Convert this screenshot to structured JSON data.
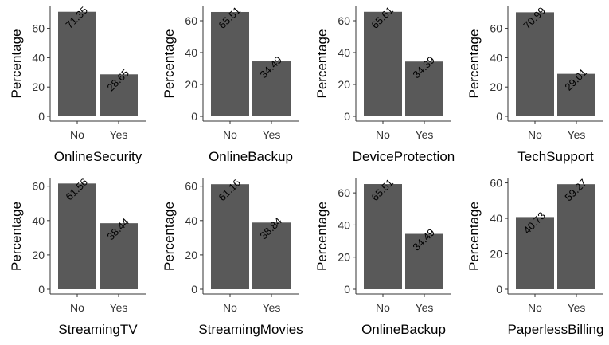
{
  "chart_data": [
    {
      "type": "bar",
      "categories": [
        "No",
        "Yes"
      ],
      "values": [
        71.35,
        28.65
      ],
      "value_labels": [
        "71.35",
        "28.65"
      ],
      "xlabel": "OnlineSecurity",
      "ylabel": "Percentage",
      "ylim": [
        0,
        75
      ],
      "yticks": [
        0,
        20,
        40,
        60
      ],
      "grid": false,
      "bar_color": "#595959"
    },
    {
      "type": "bar",
      "categories": [
        "No",
        "Yes"
      ],
      "values": [
        65.51,
        34.49
      ],
      "value_labels": [
        "65.51",
        "34.49"
      ],
      "xlabel": "OnlineBackup",
      "ylabel": "Percentage",
      "ylim": [
        0,
        69
      ],
      "yticks": [
        0,
        20,
        40,
        60
      ],
      "grid": false,
      "bar_color": "#595959"
    },
    {
      "type": "bar",
      "categories": [
        "No",
        "Yes"
      ],
      "values": [
        65.61,
        34.39
      ],
      "value_labels": [
        "65.61",
        "34.39"
      ],
      "xlabel": "DeviceProtection",
      "ylabel": "Percentage",
      "ylim": [
        0,
        69
      ],
      "yticks": [
        0,
        20,
        40,
        60
      ],
      "grid": false,
      "bar_color": "#595959"
    },
    {
      "type": "bar",
      "categories": [
        "No",
        "Yes"
      ],
      "values": [
        70.99,
        29.01
      ],
      "value_labels": [
        "70.99",
        "29.01"
      ],
      "xlabel": "TechSupport",
      "ylabel": "Percentage",
      "ylim": [
        0,
        75
      ],
      "yticks": [
        0,
        20,
        40,
        60
      ],
      "grid": false,
      "bar_color": "#595959"
    },
    {
      "type": "bar",
      "categories": [
        "No",
        "Yes"
      ],
      "values": [
        61.56,
        38.44
      ],
      "value_labels": [
        "61.56",
        "38.44"
      ],
      "xlabel": "StreamingTV",
      "ylabel": "Percentage",
      "ylim": [
        0,
        64.5
      ],
      "yticks": [
        0,
        20,
        40,
        60
      ],
      "grid": false,
      "bar_color": "#595959"
    },
    {
      "type": "bar",
      "categories": [
        "No",
        "Yes"
      ],
      "values": [
        61.16,
        38.84
      ],
      "value_labels": [
        "61.16",
        "38.84"
      ],
      "xlabel": "StreamingMovies",
      "ylabel": "Percentage",
      "ylim": [
        0,
        64.5
      ],
      "yticks": [
        0,
        20,
        40,
        60
      ],
      "grid": false,
      "bar_color": "#595959"
    },
    {
      "type": "bar",
      "categories": [
        "No",
        "Yes"
      ],
      "values": [
        65.51,
        34.49
      ],
      "value_labels": [
        "65.51",
        "34.49"
      ],
      "xlabel": "OnlineBackup",
      "ylabel": "Percentage",
      "ylim": [
        0,
        69
      ],
      "yticks": [
        0,
        20,
        40,
        60
      ],
      "grid": false,
      "bar_color": "#595959"
    },
    {
      "type": "bar",
      "categories": [
        "No",
        "Yes"
      ],
      "values": [
        40.73,
        59.27
      ],
      "value_labels": [
        "40.73",
        "59.27"
      ],
      "xlabel": "PaperlessBilling",
      "ylabel": "Percentage",
      "ylim": [
        0,
        62.5
      ],
      "yticks": [
        0,
        20,
        40,
        60
      ],
      "grid": false,
      "bar_color": "#595959"
    }
  ]
}
